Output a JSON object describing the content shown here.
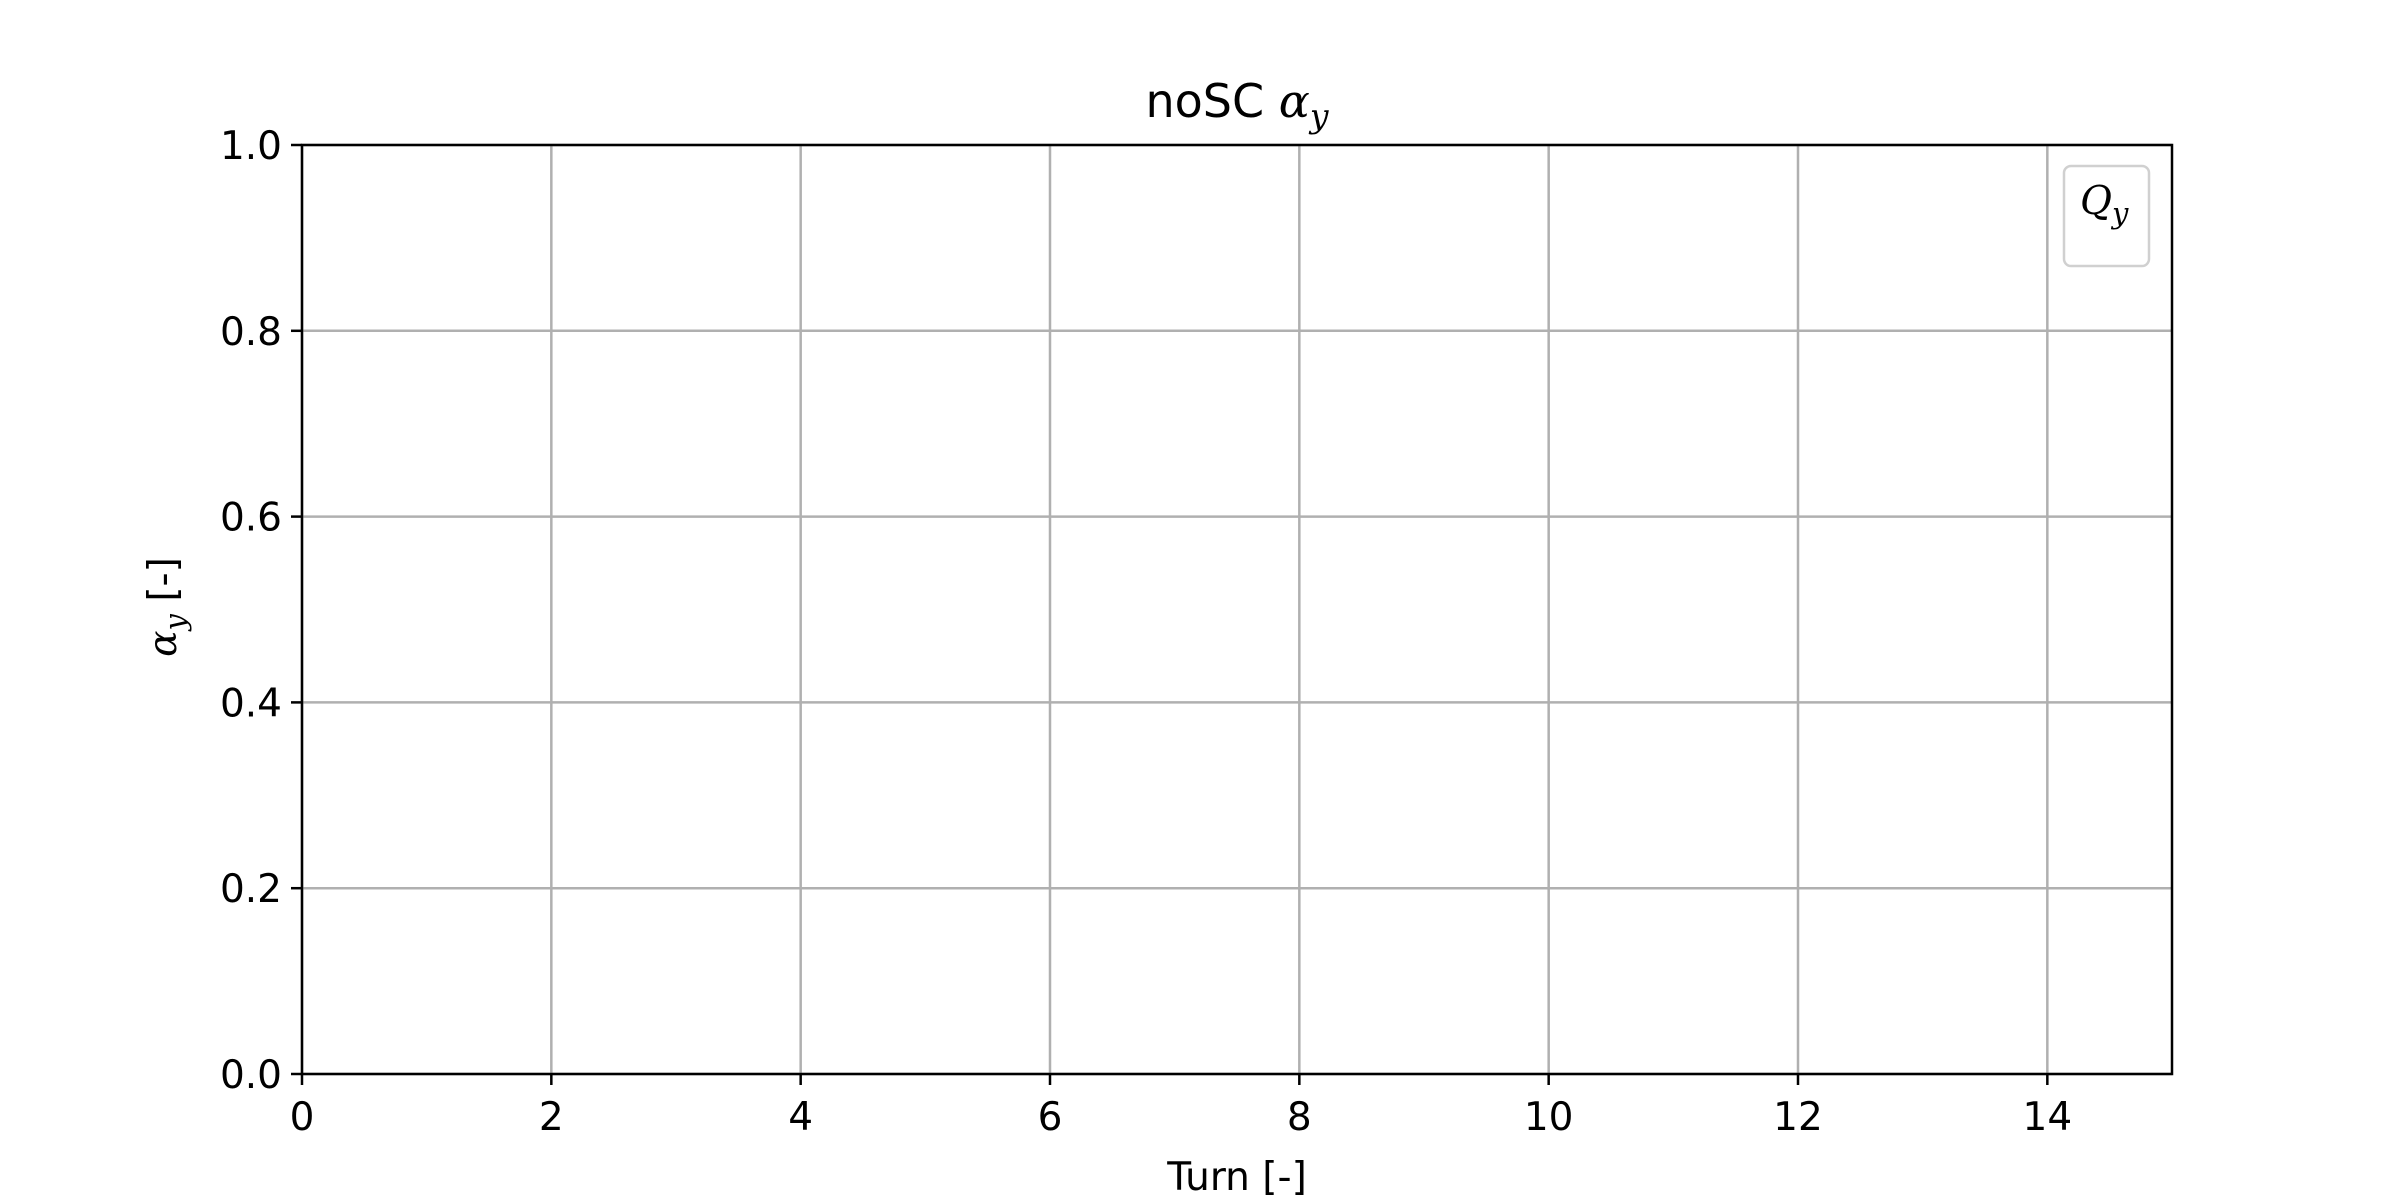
{
  "chart_data": {
    "type": "line",
    "title": {
      "prefix": "noSC ",
      "symbol": "α",
      "subscript": "y"
    },
    "xlabel": "Turn [-]",
    "ylabel": {
      "symbol": "α",
      "subscript": "y",
      "suffix": " [-]"
    },
    "xlim": [
      0,
      15
    ],
    "ylim": [
      0,
      1
    ],
    "xticks": [
      0,
      2,
      4,
      6,
      8,
      10,
      12,
      14
    ],
    "xtick_labels": [
      "0",
      "2",
      "4",
      "6",
      "8",
      "10",
      "12",
      "14"
    ],
    "yticks": [
      0,
      0.2,
      0.4,
      0.6,
      0.8,
      1.0
    ],
    "ytick_labels": [
      "0.0",
      "0.2",
      "0.4",
      "0.6",
      "0.8",
      "1.0"
    ],
    "grid": true,
    "legend_position": "top-right",
    "series": [
      {
        "name": "Q_y",
        "name_symbol": "Q",
        "name_subscript": "y",
        "x": [],
        "y": []
      }
    ],
    "colors": {
      "grid": "#b0b0b0",
      "axes": "#000000",
      "legend_border": "#d0d0d0"
    }
  }
}
